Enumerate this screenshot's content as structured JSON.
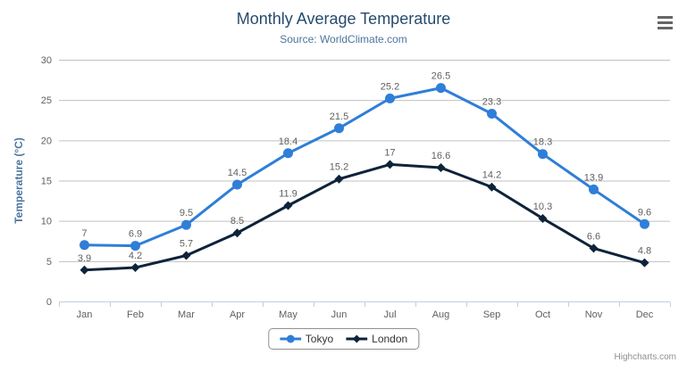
{
  "title": "Monthly Average Temperature",
  "subtitle": "Source: WorldClimate.com",
  "credit": "Highcharts.com",
  "export_menu_icon": "hamburger-icon",
  "colors": {
    "title": "#274b6d",
    "subtitle": "#4d759e",
    "axis_title": "#4d759e",
    "axis_labels": "#606060",
    "data_labels": "#606060",
    "gridline": "#c0c0c0",
    "axis_line": "#c0d0e0",
    "legend_border": "#909090",
    "legend_text": "#333333",
    "menu_icon": "#666666",
    "credit_text": "#909090"
  },
  "chart_data": {
    "type": "line",
    "title": "Monthly Average Temperature",
    "subtitle": "Source: WorldClimate.com",
    "categories": [
      "Jan",
      "Feb",
      "Mar",
      "Apr",
      "May",
      "Jun",
      "Jul",
      "Aug",
      "Sep",
      "Oct",
      "Nov",
      "Dec"
    ],
    "series": [
      {
        "name": "Tokyo",
        "color": "#2f7ed8",
        "marker": "circle",
        "values": [
          7,
          6.9,
          9.5,
          14.5,
          18.4,
          21.5,
          25.2,
          26.5,
          23.3,
          18.3,
          13.9,
          9.6
        ]
      },
      {
        "name": "London",
        "color": "#0d233a",
        "marker": "diamond",
        "values": [
          3.9,
          4.2,
          5.7,
          8.5,
          11.9,
          15.2,
          17,
          16.6,
          14.2,
          10.3,
          6.6,
          4.8
        ]
      }
    ],
    "xlabel": "",
    "ylabel": "Temperature (°C)",
    "ylim": [
      0,
      30
    ],
    "ytick_interval": 5,
    "yticks": [
      0,
      5,
      10,
      15,
      20,
      25,
      30
    ],
    "grid": true,
    "data_labels": true,
    "legend_position": "bottom"
  }
}
